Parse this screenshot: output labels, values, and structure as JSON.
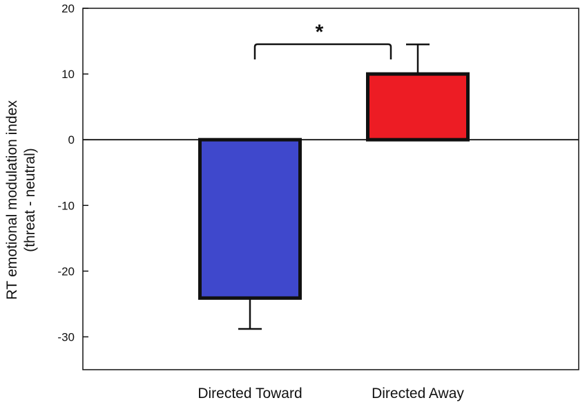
{
  "chart_data": {
    "type": "bar",
    "title": "",
    "xlabel": "",
    "ylabel_lines": [
      "RT emotional modulation index",
      "(threat - neutral)"
    ],
    "ylim": [
      -35,
      20
    ],
    "yticks": [
      20,
      10,
      0,
      -10,
      -20,
      -30
    ],
    "grid": false,
    "legend": "none",
    "categories": [
      "Directed Toward",
      "Directed Away"
    ],
    "values": [
      -24.1,
      10.0
    ],
    "errors": [
      4.7,
      4.5
    ],
    "colors": [
      "#3f48cc",
      "#ed1c24"
    ],
    "significance": {
      "between": [
        "Directed Toward",
        "Directed Away"
      ],
      "label": "*"
    }
  }
}
